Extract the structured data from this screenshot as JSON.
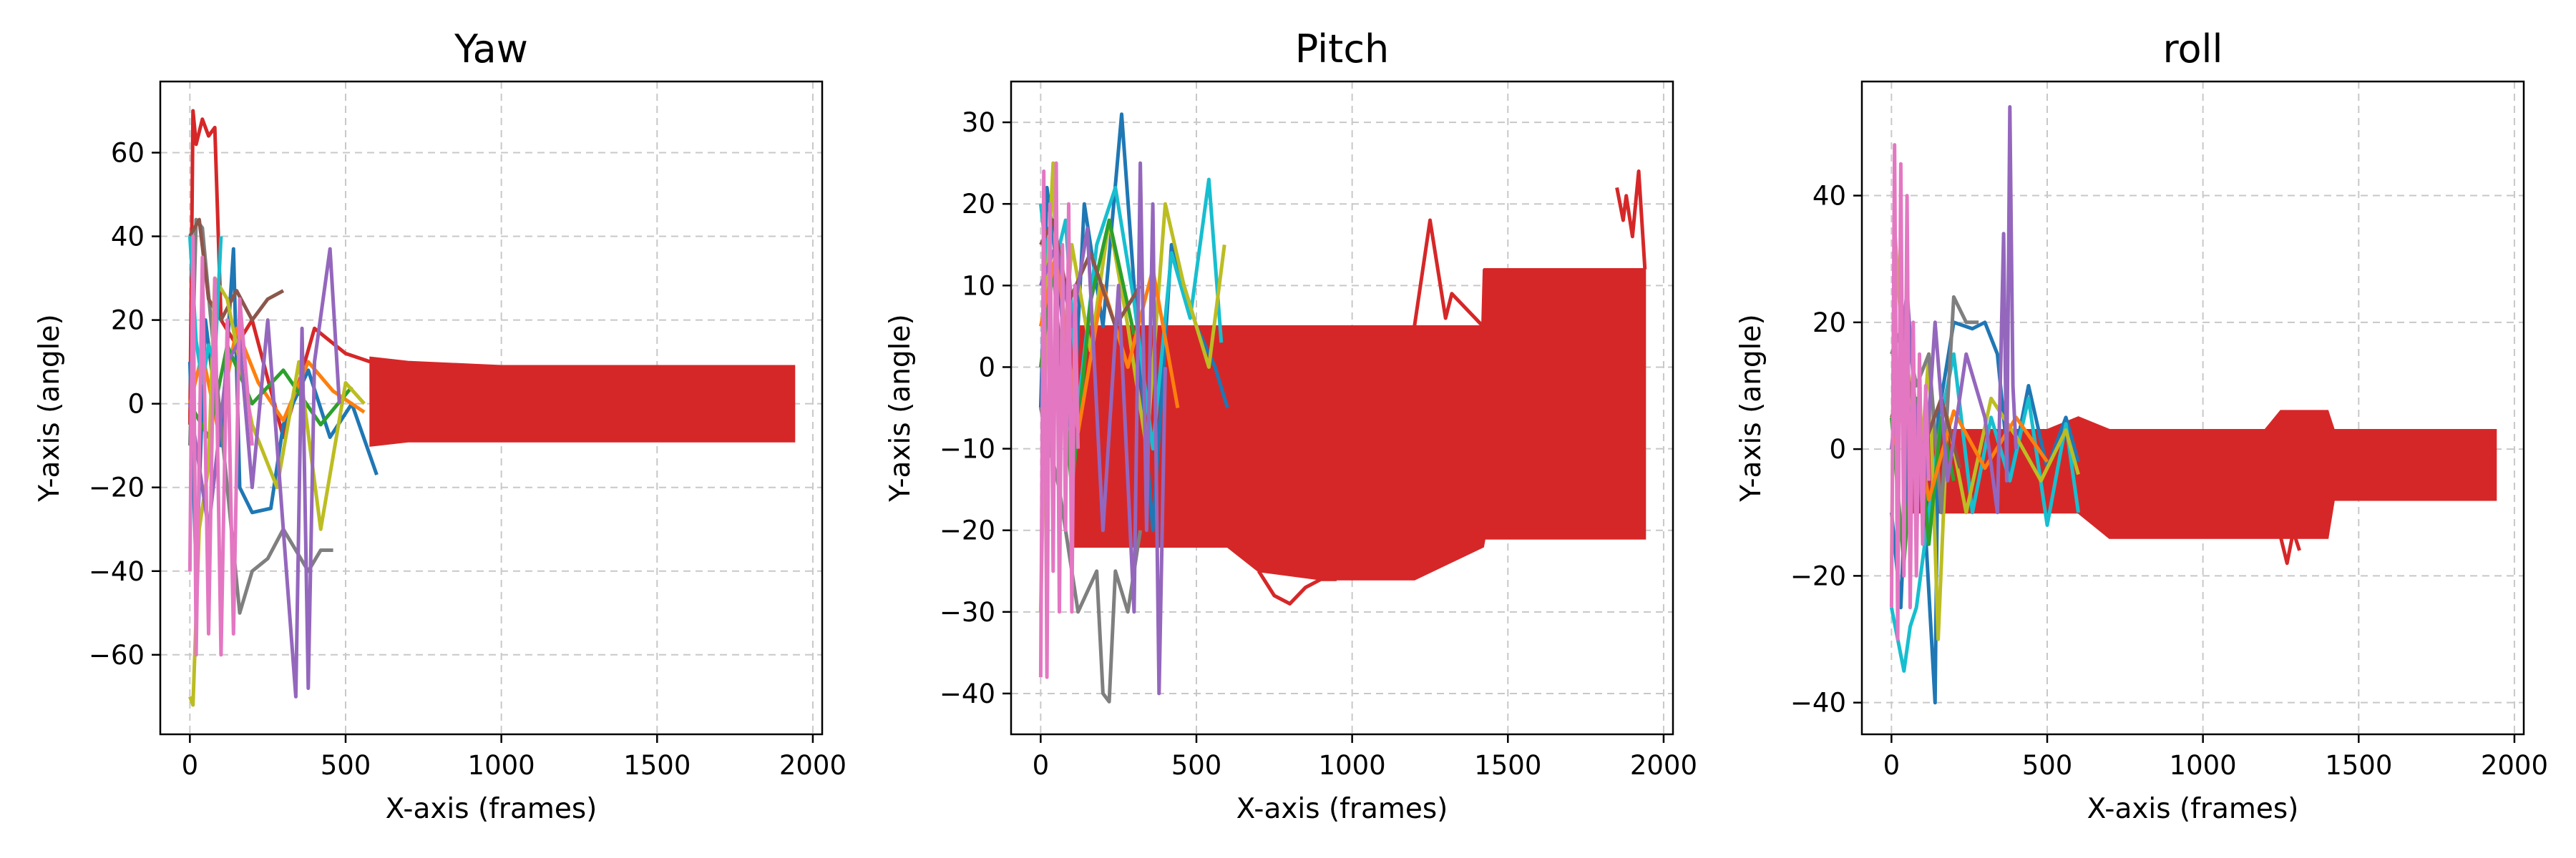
{
  "chart_data": [
    {
      "type": "line",
      "title": "Yaw",
      "xlabel": "X-axis (frames)",
      "ylabel": "Y-axis (angle)",
      "xlim": [
        -95,
        2030
      ],
      "ylim": [
        -79,
        77
      ],
      "xticks": [
        0,
        500,
        1000,
        1500,
        2000
      ],
      "yticks": [
        -60,
        -40,
        -20,
        0,
        20,
        40,
        60
      ],
      "grid": true,
      "band": {
        "name": "red-band",
        "color": "#d62728",
        "x": [
          580,
          700,
          1000,
          1500,
          1940
        ],
        "top": [
          11,
          10,
          9,
          9,
          9
        ],
        "bottom": [
          -10,
          -9,
          -9,
          -9,
          -9
        ]
      },
      "series": [
        {
          "color": "#d62728",
          "x": [
            0,
            10,
            20,
            40,
            60,
            80,
            100,
            150,
            200,
            300,
            400,
            500,
            580
          ],
          "y": [
            -5,
            70,
            62,
            68,
            64,
            66,
            20,
            14,
            20,
            -8,
            18,
            12,
            10
          ]
        },
        {
          "color": "#1f77b4",
          "x": [
            0,
            20,
            50,
            100,
            140,
            160,
            200,
            260,
            300,
            380,
            450,
            520,
            600
          ],
          "y": [
            10,
            -40,
            20,
            -10,
            37,
            -20,
            -26,
            -25,
            -5,
            8,
            -8,
            0,
            -17
          ]
        },
        {
          "color": "#ff7f0e",
          "x": [
            0,
            40,
            90,
            150,
            220,
            300,
            380,
            460,
            560
          ],
          "y": [
            0,
            12,
            -6,
            18,
            5,
            -4,
            10,
            3,
            -2
          ]
        },
        {
          "color": "#2ca02c",
          "x": [
            0,
            60,
            120,
            200,
            300,
            420,
            520
          ],
          "y": [
            0,
            -8,
            14,
            0,
            8,
            -5,
            4
          ]
        },
        {
          "color": "#7f7f7f",
          "x": [
            0,
            20,
            40,
            80,
            120,
            160,
            200,
            250,
            300,
            340,
            380,
            420,
            460
          ],
          "y": [
            -10,
            44,
            42,
            10,
            -20,
            -50,
            -40,
            -37,
            -30,
            -35,
            -40,
            -35,
            -35
          ]
        },
        {
          "color": "#8c564b",
          "x": [
            0,
            30,
            60,
            100,
            150,
            200,
            250,
            300
          ],
          "y": [
            40,
            44,
            25,
            20,
            27,
            20,
            25,
            27
          ]
        },
        {
          "color": "#bcbd22",
          "x": [
            0,
            10,
            30,
            60,
            80,
            120,
            200,
            280,
            350,
            420,
            500,
            560
          ],
          "y": [
            -70,
            -72,
            -30,
            -15,
            30,
            25,
            -5,
            -20,
            10,
            -30,
            5,
            0
          ]
        },
        {
          "color": "#17becf",
          "x": [
            0,
            20,
            40,
            60,
            80,
            100
          ],
          "y": [
            40,
            15,
            5,
            14,
            10,
            40
          ]
        },
        {
          "color": "#9467bd",
          "x": [
            0,
            60,
            120,
            160,
            200,
            250,
            300,
            340,
            360,
            380,
            400,
            450,
            480
          ],
          "y": [
            0,
            -30,
            10,
            15,
            -20,
            20,
            -30,
            -70,
            18,
            -68,
            10,
            37,
            0
          ]
        },
        {
          "color": "#e377c2",
          "x": [
            0,
            10,
            20,
            40,
            60,
            80,
            100,
            120,
            140,
            160,
            200
          ],
          "y": [
            -40,
            40,
            -60,
            35,
            -55,
            30,
            -60,
            20,
            -55,
            25,
            -10
          ]
        }
      ]
    },
    {
      "type": "line",
      "title": "Pitch",
      "xlabel": "X-axis (frames)",
      "ylabel": "Y-axis (angle)",
      "xlim": [
        -95,
        2030
      ],
      "ylim": [
        -45,
        35
      ],
      "xticks": [
        0,
        500,
        1000,
        1500,
        2000
      ],
      "yticks": [
        -40,
        -30,
        -20,
        -10,
        0,
        10,
        20,
        30
      ],
      "grid": true,
      "band": {
        "name": "red-band",
        "color": "#d62728",
        "x": [
          100,
          600,
          700,
          900,
          1200,
          1420,
          1425,
          1850,
          1940
        ],
        "top": [
          5,
          5,
          5,
          5,
          5,
          5,
          12,
          12,
          12
        ],
        "bottom": [
          -22,
          -22,
          -25,
          -26,
          -26,
          -22,
          -21,
          -21,
          -21
        ]
      },
      "series": [
        {
          "color": "#d62728",
          "x": [
            1200,
            1250,
            1300,
            1320,
            1420,
            1425
          ],
          "y": [
            5,
            18,
            6,
            9,
            5,
            12
          ]
        },
        {
          "color": "#d62728",
          "x": [
            1850,
            1870,
            1880,
            1900,
            1920,
            1940
          ],
          "y": [
            22,
            18,
            21,
            16,
            24,
            12
          ]
        },
        {
          "color": "#d62728",
          "x": [
            700,
            750,
            800,
            850,
            900,
            950
          ],
          "y": [
            -25,
            -28,
            -29,
            -27,
            -26,
            -26
          ]
        },
        {
          "color": "#1f77b4",
          "x": [
            0,
            20,
            60,
            100,
            140,
            200,
            260,
            300,
            360,
            420,
            500,
            560,
            600
          ],
          "y": [
            -5,
            22,
            10,
            -10,
            20,
            5,
            31,
            10,
            -20,
            15,
            5,
            0,
            -5
          ]
        },
        {
          "color": "#17becf",
          "x": [
            0,
            30,
            80,
            120,
            180,
            240,
            300,
            360,
            420,
            480,
            540,
            580
          ],
          "y": [
            20,
            10,
            18,
            -5,
            15,
            22,
            8,
            -10,
            14,
            6,
            23,
            3
          ]
        },
        {
          "color": "#bcbd22",
          "x": [
            0,
            20,
            40,
            60,
            100,
            160,
            220,
            280,
            340,
            400,
            460,
            540,
            590
          ],
          "y": [
            -30,
            10,
            25,
            -5,
            15,
            2,
            18,
            5,
            -10,
            20,
            10,
            0,
            15
          ]
        },
        {
          "color": "#7f7f7f",
          "x": [
            0,
            60,
            120,
            180,
            200,
            220,
            240,
            280,
            320
          ],
          "y": [
            -5,
            -15,
            -30,
            -25,
            -40,
            -41,
            -25,
            -30,
            -20
          ]
        },
        {
          "color": "#2ca02c",
          "x": [
            0,
            40,
            100,
            160,
            220,
            300
          ],
          "y": [
            0,
            12,
            -15,
            8,
            18,
            4
          ]
        },
        {
          "color": "#ff7f0e",
          "x": [
            0,
            50,
            120,
            200,
            280,
            360,
            440
          ],
          "y": [
            5,
            14,
            -8,
            10,
            0,
            12,
            -5
          ]
        },
        {
          "color": "#8c564b",
          "x": [
            0,
            40,
            90,
            160,
            240,
            320
          ],
          "y": [
            15,
            18,
            8,
            14,
            5,
            10
          ]
        },
        {
          "color": "#9467bd",
          "x": [
            0,
            50,
            100,
            150,
            200,
            250,
            300,
            320,
            340,
            360,
            380,
            400
          ],
          "y": [
            10,
            15,
            5,
            17,
            -20,
            10,
            -30,
            25,
            -20,
            20,
            -40,
            0
          ]
        },
        {
          "color": "#e377c2",
          "x": [
            0,
            10,
            20,
            30,
            40,
            50,
            60,
            70,
            80,
            90,
            100,
            110,
            120
          ],
          "y": [
            -38,
            24,
            -38,
            20,
            -25,
            25,
            -30,
            15,
            -20,
            20,
            -30,
            10,
            -10
          ]
        }
      ]
    },
    {
      "type": "line",
      "title": "roll",
      "xlabel": "X-axis (frames)",
      "ylabel": "Y-axis (angle)",
      "xlim": [
        -95,
        2030
      ],
      "ylim": [
        -45,
        58
      ],
      "xticks": [
        0,
        500,
        1000,
        1500,
        2000
      ],
      "yticks": [
        -40,
        -20,
        0,
        20,
        40
      ],
      "grid": true,
      "band": {
        "name": "red-band",
        "color": "#d62728",
        "x": [
          50,
          500,
          600,
          700,
          1000,
          1200,
          1250,
          1400,
          1420,
          1940
        ],
        "top": [
          3,
          3,
          5,
          3,
          3,
          3,
          6,
          6,
          3,
          3
        ],
        "bottom": [
          -10,
          -10,
          -10,
          -14,
          -14,
          -14,
          -14,
          -14,
          -8,
          -8
        ]
      },
      "series": [
        {
          "color": "#d62728",
          "x": [
            1250,
            1270,
            1290,
            1310
          ],
          "y": [
            -14,
            -18,
            -13,
            -16
          ]
        },
        {
          "color": "#1f77b4",
          "x": [
            0,
            30,
            60,
            100,
            140,
            150,
            200,
            260,
            300,
            340,
            380,
            440,
            500,
            560,
            600
          ],
          "y": [
            -10,
            -25,
            10,
            -5,
            -40,
            5,
            20,
            19,
            20,
            15,
            -5,
            10,
            -3,
            5,
            -2
          ]
        },
        {
          "color": "#17becf",
          "x": [
            0,
            20,
            40,
            60,
            80,
            120,
            160,
            200,
            260,
            320,
            380,
            440,
            500,
            560,
            600
          ],
          "y": [
            -25,
            -30,
            -35,
            -28,
            -25,
            -10,
            5,
            15,
            -10,
            5,
            -5,
            8,
            -12,
            4,
            -10
          ]
        },
        {
          "color": "#bcbd22",
          "x": [
            0,
            10,
            30,
            60,
            90,
            120,
            150,
            180,
            240,
            320,
            400,
            480,
            560,
            600
          ],
          "y": [
            -20,
            35,
            20,
            10,
            -5,
            15,
            -30,
            5,
            -10,
            8,
            2,
            -5,
            3,
            -4
          ]
        },
        {
          "color": "#7f7f7f",
          "x": [
            0,
            40,
            80,
            120,
            160,
            200,
            240,
            280
          ],
          "y": [
            15,
            20,
            10,
            15,
            -10,
            24,
            20,
            20
          ]
        },
        {
          "color": "#2ca02c",
          "x": [
            0,
            40,
            80,
            120,
            160,
            200
          ],
          "y": [
            5,
            -18,
            8,
            -15,
            5,
            -5
          ]
        },
        {
          "color": "#ff7f0e",
          "x": [
            0,
            60,
            120,
            200,
            300,
            400,
            500
          ],
          "y": [
            0,
            10,
            -8,
            6,
            -3,
            5,
            -2
          ]
        },
        {
          "color": "#8c564b",
          "x": [
            0,
            50,
            100,
            160,
            220
          ],
          "y": [
            5,
            12,
            0,
            8,
            -3
          ]
        },
        {
          "color": "#9467bd",
          "x": [
            0,
            50,
            100,
            140,
            180,
            240,
            300,
            340,
            360,
            370,
            380,
            390,
            400
          ],
          "y": [
            0,
            25,
            -10,
            20,
            -5,
            15,
            5,
            -10,
            34,
            -5,
            54,
            10,
            0
          ]
        },
        {
          "color": "#e377c2",
          "x": [
            0,
            10,
            20,
            30,
            40,
            50,
            60,
            70,
            80,
            90,
            100,
            110,
            120
          ],
          "y": [
            -25,
            48,
            -30,
            45,
            -20,
            40,
            -25,
            20,
            -20,
            15,
            -15,
            10,
            -5
          ]
        }
      ]
    }
  ]
}
